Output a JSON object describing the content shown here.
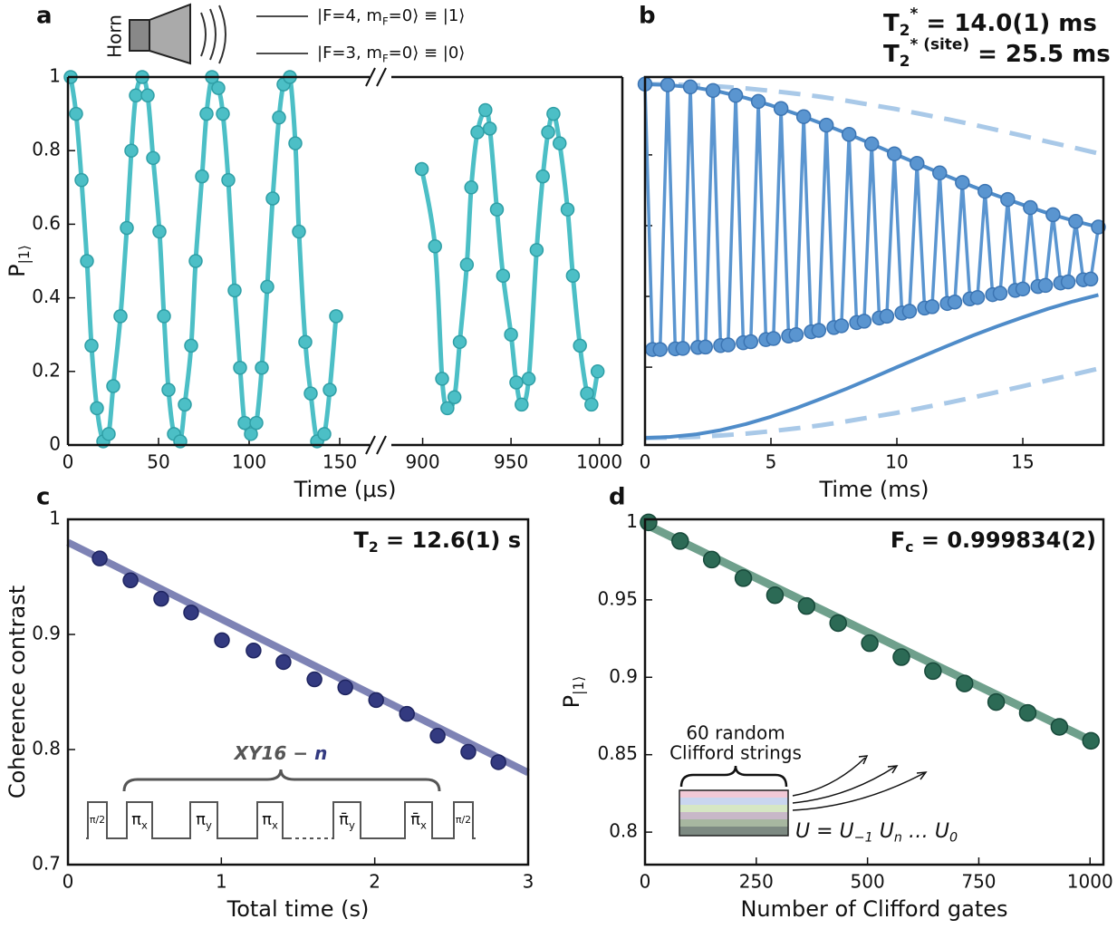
{
  "chart_data": [
    {
      "type": "line",
      "panel": "a",
      "xlabel": "Time (μs)",
      "ylabel": [
        {
          "t": "P"
        },
        {
          "sub": "|1⟩"
        }
      ],
      "horn_label": "Horn",
      "state_labels": [
        [
          {
            "t": "|F=4, m"
          },
          {
            "sub": "F"
          },
          {
            "t": "=0⟩ ≡ |1⟩"
          }
        ],
        [
          {
            "t": "|F=3, m"
          },
          {
            "sub": "F"
          },
          {
            "t": "=0⟩ ≡ |0⟩"
          }
        ]
      ],
      "x_segments": [
        {
          "xlim": [
            0,
            160
          ],
          "xticks": [
            0,
            50,
            100,
            150
          ]
        },
        {
          "xlim": [
            891,
            1013
          ],
          "xticks": [
            900,
            950,
            1000
          ]
        }
      ],
      "ylim": [
        0,
        1
      ],
      "yticks": [
        0,
        0.2,
        0.4,
        0.6,
        0.8,
        1
      ],
      "series": [
        {
          "color": "#4cbfc6",
          "edgecolor": "#2f9fa6",
          "mode": "lines+markers",
          "smooth": true,
          "x": [
            1.5,
            4.5,
            7.5,
            10.5,
            13,
            16,
            19.5,
            22.5,
            25,
            29,
            32.5,
            35,
            37.5,
            41,
            44,
            47,
            50.5,
            53,
            55.5,
            58.5,
            62,
            64.5,
            68,
            70.5,
            74,
            76.5,
            79.5,
            83,
            85.5,
            88.5,
            92,
            95,
            97.5,
            101,
            104,
            107,
            110,
            113,
            116.5,
            119,
            122.5,
            125.5,
            127.5,
            131,
            134,
            137.5,
            141.5,
            144.5,
            148,
            null,
            899.5,
            907,
            911,
            914,
            918,
            921,
            925,
            927.5,
            931,
            935.5,
            938,
            942,
            945.5,
            950,
            953,
            956,
            960,
            964.5,
            968,
            971,
            974,
            977.5,
            982,
            985,
            989,
            993,
            995.5,
            999
          ],
          "values": [
            1.0,
            0.9,
            0.72,
            0.5,
            0.27,
            0.1,
            0.01,
            0.03,
            0.16,
            0.35,
            0.59,
            0.8,
            0.95,
            1.0,
            0.95,
            0.78,
            0.58,
            0.35,
            0.15,
            0.03,
            0.01,
            0.11,
            0.27,
            0.5,
            0.73,
            0.9,
            1.0,
            0.97,
            0.9,
            0.72,
            0.42,
            0.21,
            0.06,
            0.03,
            0.06,
            0.21,
            0.43,
            0.67,
            0.89,
            0.98,
            1.0,
            0.82,
            0.58,
            0.28,
            0.14,
            0.01,
            0.03,
            0.15,
            0.35,
            null,
            0.75,
            0.54,
            0.18,
            0.1,
            0.13,
            0.28,
            0.49,
            0.7,
            0.85,
            0.91,
            0.86,
            0.64,
            0.46,
            0.3,
            0.17,
            0.11,
            0.18,
            0.53,
            0.73,
            0.85,
            0.9,
            0.82,
            0.64,
            0.46,
            0.27,
            0.14,
            0.11,
            0.2
          ]
        }
      ]
    },
    {
      "type": "line",
      "panel": "b",
      "xlabel": "Time (ms)",
      "t2_star": [
        {
          "t": "T"
        },
        {
          "sub": "2"
        },
        {
          "sup": "*"
        },
        {
          "t": "  = 14.0(1) ms"
        }
      ],
      "t2_star_site": [
        {
          "t": "T"
        },
        {
          "sub": "2"
        },
        {
          "sup": "* (site)"
        },
        {
          "t": " = 25.5 ms"
        }
      ],
      "xlim": [
        0,
        18.2
      ],
      "xticks": [
        0,
        5,
        10,
        15
      ],
      "ylim": [
        -0.02,
        1.02
      ],
      "yticks": [
        0,
        0.2,
        0.4,
        0.6,
        0.8,
        1
      ],
      "ytick_labels": false,
      "series": [
        {
          "color": "#a9c9e8",
          "mode": "lines",
          "dash": true,
          "x": [
            0,
            1,
            2,
            3,
            4,
            5,
            6,
            7,
            8,
            9,
            10,
            11,
            12,
            13,
            14,
            15,
            16,
            17,
            18
          ],
          "values": [
            1.0,
            0.999,
            0.997,
            0.993,
            0.988,
            0.981,
            0.973,
            0.964,
            0.953,
            0.941,
            0.929,
            0.915,
            0.901,
            0.886,
            0.87,
            0.854,
            0.837,
            0.821,
            0.804
          ]
        },
        {
          "color": "#a9c9e8",
          "mode": "lines",
          "dash": true,
          "x": [
            0,
            1,
            2,
            3,
            4,
            5,
            6,
            7,
            8,
            9,
            10,
            11,
            12,
            13,
            14,
            15,
            16,
            17,
            18
          ],
          "values": [
            0,
            0.001,
            0.003,
            0.007,
            0.012,
            0.019,
            0.027,
            0.036,
            0.047,
            0.059,
            0.071,
            0.085,
            0.099,
            0.114,
            0.13,
            0.146,
            0.163,
            0.179,
            0.196
          ]
        },
        {
          "color": "#4f8cc9",
          "mode": "lines",
          "x": [
            0,
            1,
            2,
            3,
            4,
            5,
            6,
            7,
            8,
            9,
            10,
            11,
            12,
            13,
            14,
            15,
            16,
            17,
            18
          ],
          "values": [
            1.0,
            0.997,
            0.99,
            0.978,
            0.961,
            0.94,
            0.916,
            0.889,
            0.861,
            0.831,
            0.8,
            0.77,
            0.74,
            0.711,
            0.684,
            0.659,
            0.635,
            0.614,
            0.596
          ]
        },
        {
          "color": "#4f8cc9",
          "mode": "lines",
          "x": [
            0,
            1,
            2,
            3,
            4,
            5,
            6,
            7,
            8,
            9,
            10,
            11,
            12,
            13,
            14,
            15,
            16,
            17,
            18
          ],
          "values": [
            0,
            0.003,
            0.01,
            0.022,
            0.039,
            0.06,
            0.084,
            0.111,
            0.139,
            0.169,
            0.2,
            0.23,
            0.26,
            0.289,
            0.316,
            0.341,
            0.365,
            0.386,
            0.404
          ]
        },
        {
          "color": "#5a95d0",
          "edgecolor": "#3c75b3",
          "mode": "lines+markers",
          "x": [
            0,
            0.3,
            0.6,
            0.9,
            1.2,
            1.5,
            1.8,
            2.1,
            2.4,
            2.7,
            3,
            3.3,
            3.6,
            3.9,
            4.2,
            4.5,
            4.8,
            5.1,
            5.4,
            5.7,
            6,
            6.3,
            6.6,
            6.9,
            7.2,
            7.5,
            7.8,
            8.1,
            8.4,
            8.7,
            9,
            9.3,
            9.6,
            9.9,
            10.2,
            10.5,
            10.8,
            11.1,
            11.4,
            11.7,
            12,
            12.3,
            12.6,
            12.9,
            13.2,
            13.5,
            13.8,
            14.1,
            14.4,
            14.7,
            15,
            15.3,
            15.6,
            15.9,
            16.2,
            16.5,
            16.8,
            17.1,
            17.4,
            17.7,
            18
          ],
          "values": [
            1.0,
            0.25,
            0.25,
            0.998,
            0.252,
            0.253,
            0.992,
            0.256,
            0.257,
            0.982,
            0.261,
            0.263,
            0.968,
            0.269,
            0.272,
            0.951,
            0.278,
            0.281,
            0.931,
            0.288,
            0.292,
            0.908,
            0.3,
            0.304,
            0.884,
            0.312,
            0.317,
            0.858,
            0.326,
            0.33,
            0.831,
            0.339,
            0.344,
            0.803,
            0.353,
            0.358,
            0.776,
            0.367,
            0.371,
            0.749,
            0.38,
            0.384,
            0.722,
            0.393,
            0.397,
            0.697,
            0.405,
            0.409,
            0.674,
            0.417,
            0.421,
            0.651,
            0.428,
            0.431,
            0.631,
            0.438,
            0.441,
            0.612,
            0.447,
            0.449,
            0.596
          ]
        }
      ]
    },
    {
      "type": "scatter",
      "panel": "c",
      "xlabel": "Total time (s)",
      "ylabel": [
        {
          "t": "Coherence contrast"
        }
      ],
      "t2": [
        {
          "t": "T"
        },
        {
          "sub": "2"
        },
        {
          "t": " = 12.6(1) s"
        }
      ],
      "sequence_label": [
        {
          "t": "XY16 − "
        },
        {
          "t": "n"
        }
      ],
      "pulses": [
        [
          {
            "t": "π/2"
          }
        ],
        [
          {
            "t": "π"
          },
          {
            "sub": "x"
          }
        ],
        [
          {
            "t": "π"
          },
          {
            "sub": "y"
          }
        ],
        [
          {
            "t": "π"
          },
          {
            "sub": "x"
          }
        ],
        [
          {
            "t": "π̄"
          },
          {
            "sub": "y"
          }
        ],
        [
          {
            "t": "π̄"
          },
          {
            "sub": "x"
          }
        ],
        [
          {
            "t": "π/2"
          }
        ]
      ],
      "xlim": [
        0,
        3
      ],
      "xticks": [
        0,
        1,
        2,
        3
      ],
      "ylim": [
        0.7,
        1
      ],
      "yticks": [
        0.7,
        0.8,
        0.9,
        1
      ],
      "series": [
        {
          "color": "#7076ad",
          "mode": "lines",
          "x": [
            0,
            3
          ],
          "values": [
            0.98,
            0.78
          ]
        },
        {
          "color": "#333a80",
          "edgecolor": "#1e2460",
          "mode": "markers",
          "x": [
            0.207,
            0.408,
            0.608,
            0.803,
            1.004,
            1.21,
            1.405,
            1.607,
            1.808,
            2.009,
            2.21,
            2.41,
            2.61,
            2.806
          ],
          "values": [
            0.966,
            0.947,
            0.931,
            0.919,
            0.895,
            0.886,
            0.876,
            0.861,
            0.854,
            0.843,
            0.831,
            0.812,
            0.798,
            0.789
          ]
        }
      ]
    },
    {
      "type": "scatter",
      "panel": "d",
      "xlabel": "Number of Clifford gates",
      "ylabel": [
        {
          "t": "P"
        },
        {
          "sub": "|1⟩"
        }
      ],
      "fidelity": [
        {
          "t": "F"
        },
        {
          "sub": "c"
        },
        {
          "t": " = 0.999834(2)"
        }
      ],
      "inset_label": [
        "60 random",
        "Clifford strings"
      ],
      "unitary": [
        {
          "t": "U = U"
        },
        {
          "sub": "−1"
        },
        {
          "t": " U"
        },
        {
          "sub": "n"
        },
        {
          "t": " … U"
        },
        {
          "sub": "0"
        }
      ],
      "xlim": [
        0,
        1030
      ],
      "xticks": [
        0,
        250,
        500,
        750,
        1000
      ],
      "ylim": [
        0.779,
        1.002
      ],
      "yticks": [
        0.8,
        0.85,
        0.9,
        0.95,
        1
      ],
      "series": [
        {
          "color": "#5f967f",
          "mode": "lines",
          "x": [
            0,
            1010
          ],
          "values": [
            0.999,
            0.858
          ]
        },
        {
          "color": "#2c6a55",
          "edgecolor": "#17493a",
          "mode": "markers",
          "x": [
            8,
            79,
            150,
            221,
            292,
            363,
            434,
            505,
            576,
            647,
            718,
            789,
            860,
            931,
            1002
          ],
          "values": [
            1.0,
            0.988,
            0.976,
            0.964,
            0.953,
            0.946,
            0.935,
            0.922,
            0.913,
            0.904,
            0.896,
            0.884,
            0.877,
            0.868,
            0.859
          ]
        }
      ]
    }
  ]
}
